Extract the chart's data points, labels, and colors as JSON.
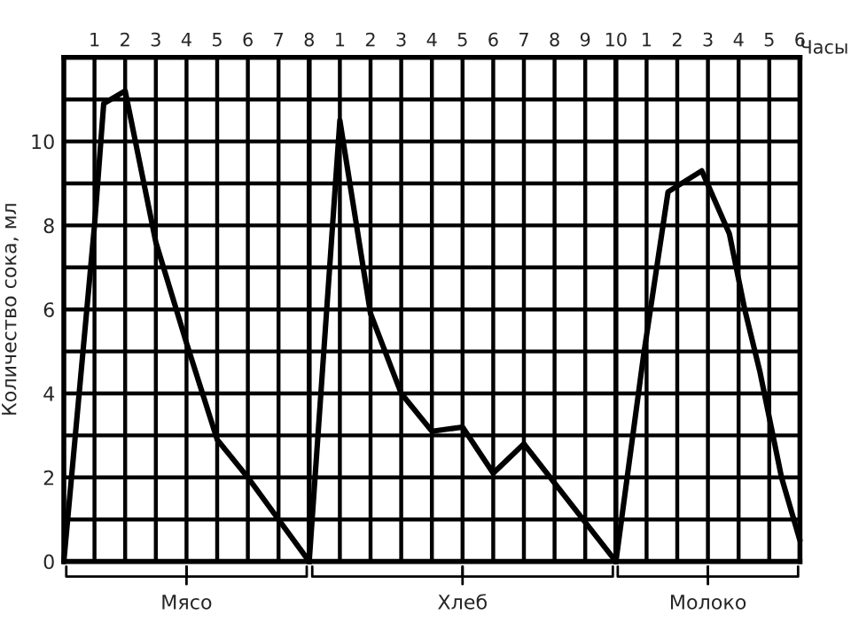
{
  "chart_data": [
    {
      "type": "line",
      "ylabel": "Количество сока, мл",
      "x": [
        0,
        1,
        1.3,
        2,
        3,
        4,
        5,
        6,
        7,
        8
      ],
      "series": [
        {
          "color": "#000000",
          "values": [
            0,
            8,
            10.9,
            11.2,
            7.6,
            5.2,
            2.9,
            2,
            1,
            0
          ]
        }
      ],
      "xlim": [
        0,
        8
      ],
      "xticks": [
        1,
        2,
        3,
        4,
        5,
        6,
        7,
        8
      ],
      "ylim": [
        0,
        12
      ],
      "yticks": [
        0,
        {
          "value": 1,
          "label": null
        },
        2,
        {
          "value": 3,
          "label": null
        },
        4,
        {
          "value": 5,
          "label": null
        },
        6,
        {
          "value": 7,
          "label": null
        },
        8,
        {
          "value": 9,
          "label": null
        },
        10,
        {
          "value": 11,
          "label": null
        }
      ],
      "grid": true,
      "marker": "none",
      "line_style": "solid",
      "annotations": [
        "Мясо"
      ]
    },
    {
      "type": "line",
      "x": [
        0,
        1,
        2,
        3,
        4,
        5,
        6,
        7,
        10
      ],
      "series": [
        {
          "color": "#000000",
          "values": [
            0,
            10.5,
            5.9,
            4,
            3.1,
            3.2,
            2.1,
            2.8,
            0
          ]
        }
      ],
      "xlim": [
        0,
        10
      ],
      "xticks": [
        1,
        2,
        3,
        4,
        5,
        6,
        7,
        8,
        9,
        10
      ],
      "ylim": [
        0,
        12
      ],
      "yticks": [
        0,
        1,
        2,
        3,
        4,
        5,
        6,
        7,
        8,
        9,
        10,
        11
      ],
      "tick_labels": "x",
      "grid": true,
      "marker": "none",
      "line_style": "solid",
      "annotations": [
        "Хлеб"
      ]
    },
    {
      "type": "line",
      "xlabel": "Часы",
      "x": [
        0,
        0.9,
        1.7,
        2.8,
        3.7,
        4.2,
        4.7,
        5.4,
        6
      ],
      "series": [
        {
          "color": "#000000",
          "values": [
            0,
            4.9,
            8.8,
            9.3,
            7.8,
            6,
            4.5,
            2,
            0.5
          ]
        }
      ],
      "xlim": [
        0,
        6
      ],
      "xticks": [
        1,
        2,
        3,
        4,
        5,
        6
      ],
      "ylim": [
        0,
        12
      ],
      "yticks": [
        0,
        1,
        2,
        3,
        4,
        5,
        6,
        7,
        8,
        9,
        10,
        11
      ],
      "tick_labels": "x",
      "grid": true,
      "marker": "none",
      "line_style": "solid",
      "annotations": [
        "Молоко"
      ]
    }
  ]
}
